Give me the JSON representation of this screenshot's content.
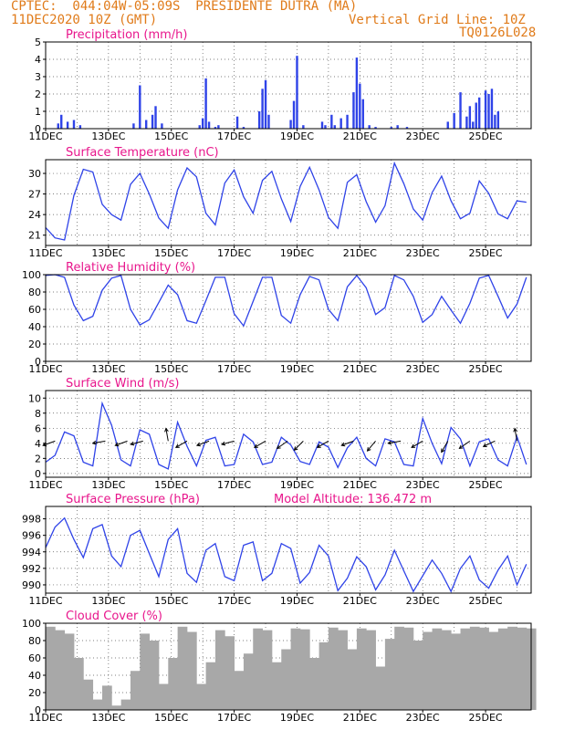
{
  "header": {
    "line1": "CPTEC:  044:04W-05:09S  PRESIDENTE DUTRA (MA)",
    "line2_left": "11DEC2020 10Z (GMT)",
    "line2_right": "Vertical Grid Line: 10Z",
    "line3_right": "TQ0126L028"
  },
  "colors": {
    "series": "#2f43e8",
    "cloud": "#a8a8a8",
    "title": "#e8168c",
    "header": "#e07b1a"
  },
  "x_ticks": [
    "11DEC",
    "13DEC",
    "15DEC",
    "17DEC",
    "19DEC",
    "21DEC",
    "23DEC",
    "25DEC"
  ],
  "chart_data": [
    {
      "type": "bar",
      "title": "Precipitation (mm/h)",
      "ylim": [
        0,
        5
      ],
      "yticks": [
        0,
        1,
        2,
        3,
        4,
        5
      ],
      "x_days": [
        0.4,
        0.5,
        0.7,
        0.9,
        1.1,
        2.8,
        3.0,
        3.2,
        3.4,
        3.5,
        3.7,
        4.9,
        5.0,
        5.1,
        5.2,
        5.4,
        5.5,
        6.1,
        6.3,
        6.8,
        6.9,
        7.0,
        7.1,
        7.8,
        7.9,
        8.0,
        8.2,
        8.8,
        8.9,
        9.1,
        9.2,
        9.4,
        9.6,
        9.8,
        9.9,
        10.0,
        10.1,
        10.3,
        10.5,
        11.0,
        11.2,
        11.5,
        12.8,
        13.0,
        13.2,
        13.4,
        13.5,
        13.6,
        13.7,
        13.8,
        14.0,
        14.1,
        14.2,
        14.3,
        14.4
      ],
      "values": [
        0.3,
        0.8,
        0.4,
        0.5,
        0.2,
        0.3,
        2.5,
        0.5,
        0.8,
        1.3,
        0.3,
        0.2,
        0.6,
        2.9,
        0.4,
        0.1,
        0.2,
        0.7,
        0.1,
        1.0,
        2.3,
        2.8,
        0.8,
        0.5,
        1.6,
        4.2,
        0.2,
        0.4,
        0.2,
        0.8,
        0.2,
        0.6,
        0.8,
        2.1,
        4.1,
        2.6,
        1.7,
        0.2,
        0.1,
        0.1,
        0.2,
        0.1,
        0.4,
        0.9,
        2.1,
        0.7,
        1.3,
        0.4,
        1.5,
        1.8,
        2.2,
        2.0,
        2.3,
        0.8,
        1.0
      ]
    },
    {
      "type": "line",
      "title": "Surface Temperature (nC)",
      "ylim": [
        19.5,
        32
      ],
      "yticks": [
        21,
        24,
        27,
        30
      ],
      "x": [
        0,
        0.3,
        0.6,
        0.9,
        1.2,
        1.5,
        1.8,
        2.1,
        2.4,
        2.7,
        3.0,
        3.3,
        3.6,
        3.9,
        4.2,
        4.5,
        4.8,
        5.1,
        5.4,
        5.7,
        6.0,
        6.3,
        6.6,
        6.9,
        7.2,
        7.5,
        7.8,
        8.1,
        8.4,
        8.7,
        9.0,
        9.3,
        9.6,
        9.9,
        10.2,
        10.5,
        10.8,
        11.1,
        11.4,
        11.7,
        12.0,
        12.3,
        12.6,
        12.9,
        13.2,
        13.5,
        13.8,
        14.1,
        14.4,
        14.7,
        15.0,
        15.3
      ],
      "y": [
        22.1,
        20.6,
        20.3,
        26.8,
        30.6,
        30.2,
        25.5,
        24.0,
        23.2,
        28.4,
        30.0,
        27.0,
        23.5,
        22.0,
        27.6,
        30.8,
        29.5,
        24.2,
        22.5,
        28.6,
        30.5,
        26.6,
        24.2,
        29.0,
        30.3,
        26.3,
        23.0,
        28.1,
        30.9,
        27.6,
        23.6,
        22.0,
        28.7,
        29.8,
        25.9,
        22.9,
        25.3,
        31.5,
        28.5,
        24.8,
        23.2,
        27.2,
        29.6,
        26.0,
        23.4,
        24.2,
        28.9,
        27.1,
        24.1,
        23.4,
        26.0,
        25.8
      ]
    },
    {
      "type": "line",
      "title": "Relative Humidity (%)",
      "ylim": [
        0,
        100
      ],
      "yticks": [
        0,
        20,
        40,
        60,
        80,
        100
      ],
      "x": [
        0,
        0.3,
        0.6,
        0.9,
        1.2,
        1.5,
        1.8,
        2.1,
        2.4,
        2.7,
        3.0,
        3.3,
        3.6,
        3.9,
        4.2,
        4.5,
        4.8,
        5.1,
        5.4,
        5.7,
        6.0,
        6.3,
        6.6,
        6.9,
        7.2,
        7.5,
        7.8,
        8.1,
        8.4,
        8.7,
        9.0,
        9.3,
        9.6,
        9.9,
        10.2,
        10.5,
        10.8,
        11.1,
        11.4,
        11.7,
        12.0,
        12.3,
        12.6,
        12.9,
        13.2,
        13.5,
        13.8,
        14.1,
        14.4,
        14.7,
        15.0,
        15.3
      ],
      "y": [
        99,
        100,
        97,
        65,
        47,
        52,
        82,
        96,
        99,
        60,
        42,
        48,
        68,
        88,
        77,
        47,
        44,
        70,
        97,
        97,
        55,
        41,
        69,
        97,
        97,
        53,
        44,
        77,
        98,
        94,
        60,
        47,
        86,
        99,
        85,
        54,
        62,
        99,
        94,
        75,
        45,
        54,
        75,
        59,
        44,
        67,
        96,
        99,
        75,
        50,
        66,
        97
      ]
    },
    {
      "type": "line",
      "title": "Surface Wind (m/s)",
      "ylim": [
        -0.5,
        11
      ],
      "yticks": [
        0,
        2,
        4,
        6,
        8,
        10
      ],
      "x": [
        0,
        0.3,
        0.6,
        0.9,
        1.2,
        1.5,
        1.8,
        2.1,
        2.4,
        2.7,
        3.0,
        3.3,
        3.6,
        3.9,
        4.2,
        4.5,
        4.8,
        5.1,
        5.4,
        5.7,
        6.0,
        6.3,
        6.6,
        6.9,
        7.2,
        7.5,
        7.8,
        8.1,
        8.4,
        8.7,
        9.0,
        9.3,
        9.6,
        9.9,
        10.2,
        10.5,
        10.8,
        11.1,
        11.4,
        11.7,
        12.0,
        12.3,
        12.6,
        12.9,
        13.2,
        13.5,
        13.8,
        14.1,
        14.4,
        14.7,
        15.0,
        15.3
      ],
      "y": [
        1.5,
        2.4,
        5.5,
        5.0,
        1.5,
        1.0,
        9.3,
        6.4,
        1.8,
        1.0,
        5.8,
        5.2,
        1.2,
        0.6,
        6.8,
        3.6,
        1.0,
        4.4,
        4.8,
        1.0,
        1.2,
        5.2,
        4.2,
        1.2,
        1.5,
        4.8,
        3.8,
        1.6,
        1.2,
        4.2,
        3.5,
        0.8,
        3.4,
        4.8,
        2.0,
        1.0,
        4.6,
        4.2,
        1.2,
        1.0,
        7.3,
        4.0,
        1.3,
        6.1,
        4.6,
        1.0,
        4.2,
        4.6,
        1.8,
        1.0,
        4.9,
        1.2
      ],
      "arrows_x": [
        0.3,
        1.9,
        2.6,
        3.1,
        3.9,
        4.5,
        5.2,
        6.0,
        7.0,
        7.7,
        8.2,
        9.0,
        9.8,
        10.5,
        11.3,
        12.0,
        12.8,
        13.5,
        14.3,
        15.0
      ],
      "arrows_angle": [
        200,
        190,
        200,
        195,
        100,
        210,
        200,
        195,
        210,
        215,
        225,
        210,
        200,
        230,
        190,
        210,
        240,
        215,
        205,
        100
      ]
    },
    {
      "type": "line",
      "title": "Surface Pressure (hPa)",
      "annotation": "Model Altitude: 136.472 m",
      "ylim": [
        989,
        999.5
      ],
      "yticks": [
        990,
        992,
        994,
        996,
        998
      ],
      "x": [
        0,
        0.3,
        0.6,
        0.9,
        1.2,
        1.5,
        1.8,
        2.1,
        2.4,
        2.7,
        3.0,
        3.3,
        3.6,
        3.9,
        4.2,
        4.5,
        4.8,
        5.1,
        5.4,
        5.7,
        6.0,
        6.3,
        6.6,
        6.9,
        7.2,
        7.5,
        7.8,
        8.1,
        8.4,
        8.7,
        9.0,
        9.3,
        9.6,
        9.9,
        10.2,
        10.5,
        10.8,
        11.1,
        11.4,
        11.7,
        12.0,
        12.3,
        12.6,
        12.9,
        13.2,
        13.5,
        13.8,
        14.1,
        14.4,
        14.7,
        15.0,
        15.3
      ],
      "y": [
        994.5,
        997.0,
        998.1,
        995.5,
        993.3,
        996.8,
        997.3,
        993.5,
        992.2,
        996.0,
        996.6,
        993.8,
        991.0,
        995.5,
        996.8,
        991.4,
        990.3,
        994.2,
        995.0,
        991.0,
        990.5,
        994.8,
        995.2,
        990.5,
        991.4,
        995.0,
        994.4,
        990.2,
        991.5,
        994.8,
        993.5,
        989.3,
        990.8,
        993.4,
        992.2,
        989.4,
        991.2,
        994.2,
        991.7,
        989.2,
        991.1,
        993.0,
        991.4,
        989.2,
        992.0,
        993.5,
        990.6,
        989.6,
        991.8,
        993.5,
        990.0,
        992.5
      ]
    },
    {
      "type": "area",
      "title": "Cloud Cover (%)",
      "ylim": [
        0,
        100
      ],
      "yticks": [
        0,
        20,
        40,
        60,
        80,
        100
      ],
      "x": [
        0,
        0.3,
        0.6,
        0.9,
        1.2,
        1.5,
        1.8,
        2.1,
        2.4,
        2.7,
        3.0,
        3.3,
        3.6,
        3.9,
        4.2,
        4.5,
        4.8,
        5.1,
        5.4,
        5.7,
        6.0,
        6.3,
        6.6,
        6.9,
        7.2,
        7.5,
        7.8,
        8.1,
        8.4,
        8.7,
        9.0,
        9.3,
        9.6,
        9.9,
        10.2,
        10.5,
        10.8,
        11.1,
        11.4,
        11.7,
        12.0,
        12.3,
        12.6,
        12.9,
        13.2,
        13.5,
        13.8,
        14.1,
        14.4,
        14.7,
        15.0,
        15.3
      ],
      "y": [
        96,
        92,
        88,
        60,
        35,
        12,
        28,
        5,
        12,
        45,
        88,
        80,
        30,
        60,
        96,
        90,
        30,
        55,
        92,
        85,
        45,
        65,
        94,
        92,
        55,
        70,
        94,
        93,
        60,
        78,
        95,
        92,
        70,
        94,
        92,
        50,
        82,
        96,
        95,
        80,
        90,
        94,
        92,
        88,
        94,
        96,
        95,
        90,
        94,
        96,
        95,
        94
      ]
    }
  ]
}
